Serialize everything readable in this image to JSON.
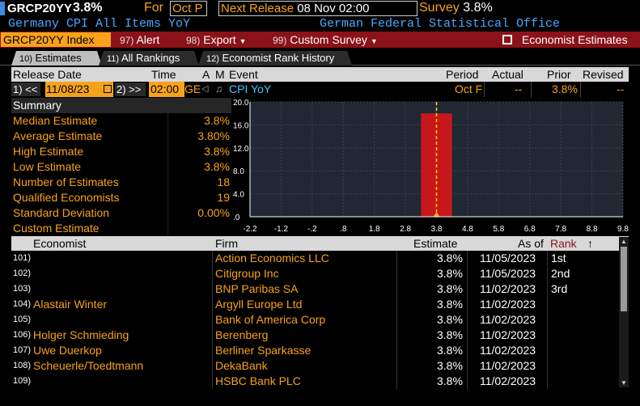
{
  "header": {
    "ticker": "GRCP20YY",
    "value": "3.8%",
    "for_label": "For",
    "period": "Oct P",
    "next_release_label": "Next Release",
    "next_release_value": "08 Nov 02:00",
    "survey_label": "Survey",
    "survey_value": "3.8%",
    "subtitle": "Germany CPI All Items YoY",
    "source": "German Federal Statistical Office"
  },
  "menu": {
    "ticker_button": "GRCP20YY Index",
    "alert_num": "97)",
    "alert": "Alert",
    "export_num": "98)",
    "export": "Export",
    "custom_num": "99)",
    "custom_survey": "Custom Survey",
    "economist_estimates": "Economist Estimates"
  },
  "tabs": [
    {
      "num": "10)",
      "label": "Estimates"
    },
    {
      "num": "11)",
      "label": "All Rankings"
    },
    {
      "num": "12)",
      "label": "Economist Rank History"
    }
  ],
  "release_header": {
    "release_date": "Release Date",
    "time": "Time",
    "a": "A",
    "m": "M",
    "event": "Event",
    "period": "Period",
    "actual": "Actual",
    "prior": "Prior",
    "revised": "Revised"
  },
  "release_row": {
    "prev_btn": "1) <<",
    "date": "11/08/23",
    "next_btn": "2) >>",
    "time": "02:00",
    "country": "GE",
    "event": "CPI YoY",
    "period": "Oct F",
    "actual": "--",
    "prior": "3.8%",
    "revised": "--"
  },
  "summary": {
    "title": "Summary",
    "rows": [
      {
        "label": "Median Estimate",
        "value": "3.8%"
      },
      {
        "label": "Average Estimate",
        "value": "3.80%"
      },
      {
        "label": "High Estimate",
        "value": "3.8%"
      },
      {
        "label": "Low Estimate",
        "value": "3.8%"
      },
      {
        "label": "Number of Estimates",
        "value": "18"
      },
      {
        "label": "Qualified Economists",
        "value": "19"
      },
      {
        "label": "Standard Deviation",
        "value": "0.00%"
      },
      {
        "label": "Custom Estimate",
        "value": ""
      }
    ]
  },
  "chart_data": {
    "type": "bar",
    "x_ticks": [
      "-2.2",
      "-1.2",
      "-.2",
      ".8",
      "1.8",
      "2.8",
      "3.8",
      "4.8",
      "5.8",
      "6.8",
      "7.8",
      "8.8",
      "9.8"
    ],
    "y_ticks": [
      "20.0",
      "16.0",
      "12.0",
      "8.0",
      "4.0",
      ".0"
    ],
    "xlim": [
      -2.2,
      9.8
    ],
    "ylim": [
      0,
      20
    ],
    "bars": [
      {
        "x_from": 3.3,
        "x_to": 4.3,
        "value": 18
      }
    ],
    "marker_x": 3.8,
    "grid": true,
    "bar_color": "#c8161d",
    "marker_color": "#ffe100"
  },
  "economist_header": {
    "economist": "Economist",
    "firm": "Firm",
    "estimate": "Estimate",
    "as_of": "As of",
    "rank": "Rank",
    "sort_arrow": "↑"
  },
  "economists": [
    {
      "num": "101)",
      "name": "",
      "firm": "Action Economics LLC",
      "estimate": "3.8%",
      "as_of": "11/05/2023",
      "rank": "1st"
    },
    {
      "num": "102)",
      "name": "",
      "firm": "Citigroup Inc",
      "estimate": "3.8%",
      "as_of": "11/05/2023",
      "rank": "2nd"
    },
    {
      "num": "103)",
      "name": "",
      "firm": "BNP Paribas SA",
      "estimate": "3.8%",
      "as_of": "11/02/2023",
      "rank": "3rd"
    },
    {
      "num": "104)",
      "name": "Alastair Winter",
      "firm": "Argyll Europe Ltd",
      "estimate": "3.8%",
      "as_of": "11/02/2023",
      "rank": ""
    },
    {
      "num": "105)",
      "name": "",
      "firm": "Bank of America Corp",
      "estimate": "3.8%",
      "as_of": "11/02/2023",
      "rank": ""
    },
    {
      "num": "106)",
      "name": "Holger Schmieding",
      "firm": "Berenberg",
      "estimate": "3.8%",
      "as_of": "11/02/2023",
      "rank": ""
    },
    {
      "num": "107)",
      "name": "Uwe Duerkop",
      "firm": "Berliner Sparkasse",
      "estimate": "3.8%",
      "as_of": "11/02/2023",
      "rank": ""
    },
    {
      "num": "108)",
      "name": "Scheuerle/Toedtmann",
      "firm": "DekaBank",
      "estimate": "3.8%",
      "as_of": "11/02/2023",
      "rank": ""
    },
    {
      "num": "109)",
      "name": "",
      "firm": "HSBC Bank PLC",
      "estimate": "3.8%",
      "as_of": "11/02/2023",
      "rank": ""
    }
  ]
}
